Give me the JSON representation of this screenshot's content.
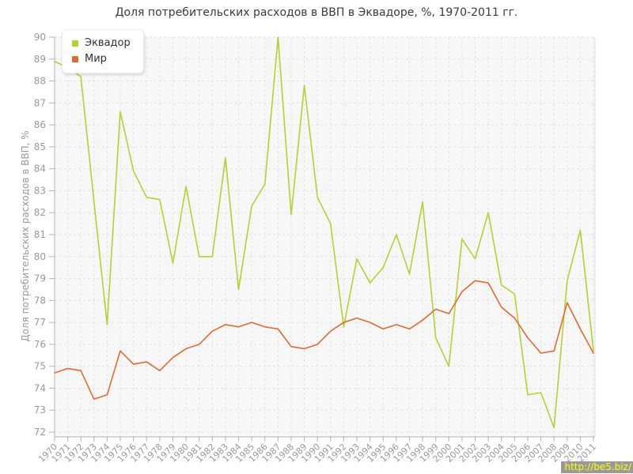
{
  "watermark": {
    "text": "http://be5.biz/"
  },
  "chart_data": {
    "type": "line",
    "title": "Доля потребительских расходов в ВВП в Эквадоре, %, 1970-2011 гг.",
    "xlabel": "",
    "ylabel": "Доля потребительских расходов в ВВП, %",
    "ylim": [
      72,
      90
    ],
    "ytick_step": 1,
    "grid": "dashed",
    "legend_position": "top-left",
    "background_color": "#f7f7f7",
    "gridline_color": "#e2e2e2",
    "axis_color": "#b3b3b3",
    "tick_label_color": "#999999",
    "categories": [
      "1970",
      "1971",
      "1972",
      "1973",
      "1974",
      "1975",
      "1976",
      "1977",
      "1978",
      "1979",
      "1980",
      "1981",
      "1982",
      "1983",
      "1984",
      "1985",
      "1986",
      "1987",
      "1988",
      "1989",
      "1990",
      "1991",
      "1992",
      "1993",
      "1994",
      "1995",
      "1996",
      "1997",
      "1998",
      "1999",
      "2000",
      "2001",
      "2002",
      "2003",
      "2004",
      "2005",
      "2006",
      "2007",
      "2008",
      "2009",
      "2010",
      "2011"
    ],
    "series": [
      {
        "name": "Эквадор",
        "color": "#b5d02f",
        "values": [
          88.9,
          88.6,
          88.2,
          82.5,
          76.9,
          86.6,
          83.9,
          82.7,
          82.6,
          79.7,
          83.2,
          80.0,
          80.0,
          84.5,
          78.5,
          82.3,
          83.3,
          90.0,
          81.9,
          87.8,
          82.7,
          81.5,
          76.8,
          79.9,
          78.8,
          79.5,
          81.0,
          79.2,
          82.5,
          76.3,
          75.0,
          80.8,
          79.9,
          82.0,
          78.7,
          78.3,
          73.7,
          73.8,
          72.2,
          78.9,
          81.2,
          75.7
        ]
      },
      {
        "name": "Мир",
        "color": "#e4692f",
        "values": [
          74.7,
          74.9,
          74.8,
          73.5,
          73.7,
          75.7,
          75.1,
          75.2,
          74.8,
          75.4,
          75.8,
          76.0,
          76.6,
          76.9,
          76.8,
          77.0,
          76.8,
          76.7,
          75.9,
          75.8,
          76.0,
          76.6,
          77.0,
          77.2,
          77.0,
          76.7,
          76.9,
          76.7,
          77.1,
          77.6,
          77.4,
          78.4,
          78.9,
          78.8,
          77.7,
          77.2,
          76.3,
          75.6,
          75.7,
          77.9,
          76.7,
          75.6
        ]
      }
    ]
  }
}
